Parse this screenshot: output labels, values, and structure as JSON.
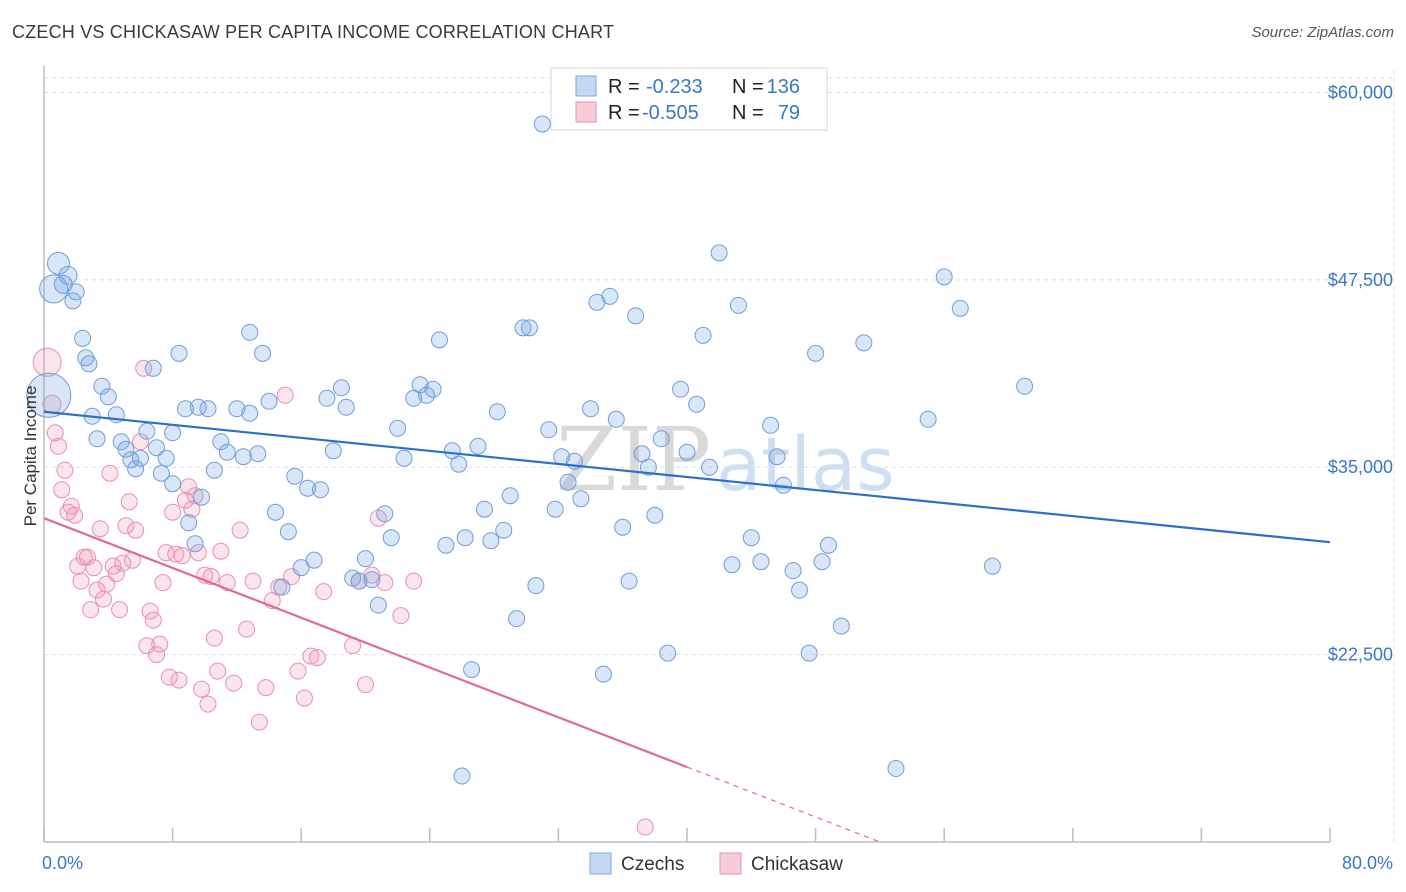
{
  "title": "CZECH VS CHICKASAW PER CAPITA INCOME CORRELATION CHART",
  "source": "Source: ZipAtlas.com",
  "watermark": {
    "zip": "ZIP",
    "atlas": "atlas"
  },
  "colors": {
    "czech_fill": "rgba(120,165,225,0.28)",
    "czech_stroke": "#6f9fd8",
    "czech_line": "#2a6fcc",
    "chick_fill": "rgba(240,150,180,0.25)",
    "chick_stroke": "#e98fb0",
    "chick_line": "#e06a97",
    "accent": "#3a78c4",
    "grid": "#dedede"
  },
  "legend": {
    "rows": [
      {
        "r_label": "R =",
        "r_value": "-0.233",
        "n_label": "N =",
        "n_value": "136"
      },
      {
        "r_label": "R =",
        "r_value": "-0.505",
        "n_label": "N =",
        "n_value": "79"
      }
    ]
  },
  "bottom_legend": [
    "Czechs",
    "Chickasaw"
  ],
  "chart_data": {
    "type": "scatter",
    "xlabel": "",
    "ylabel": "Per Capita Income",
    "xlim": [
      0,
      80
    ],
    "ylim": [
      10000,
      61500
    ],
    "x_tick_labels": [
      "0.0%",
      "80.0%"
    ],
    "y_ticks": [
      22500,
      35000,
      47500,
      60000
    ],
    "y_tick_labels": [
      "$22,500",
      "$35,000",
      "$47,500",
      "$60,000"
    ],
    "grid": true,
    "legend_position": "top-center",
    "series": [
      {
        "name": "Czechs",
        "trend": {
          "x0": 0,
          "y0": 38700,
          "x1": 80,
          "y1": 30000
        },
        "points": [
          [
            0.3,
            39800,
            22
          ],
          [
            0.6,
            46900,
            14
          ],
          [
            0.9,
            48600,
            11
          ],
          [
            1.2,
            47200,
            9
          ],
          [
            1.5,
            47800,
            9
          ],
          [
            1.8,
            46100,
            8
          ],
          [
            2.0,
            46700,
            8
          ],
          [
            2.4,
            43600,
            8
          ],
          [
            2.6,
            42300,
            8
          ],
          [
            2.8,
            41900,
            8
          ],
          [
            3.0,
            38400,
            8
          ],
          [
            3.3,
            36900,
            8
          ],
          [
            3.6,
            40400,
            8
          ],
          [
            4.0,
            39700,
            8
          ],
          [
            4.5,
            38500,
            8
          ],
          [
            4.8,
            36700,
            8
          ],
          [
            5.1,
            36200,
            8
          ],
          [
            5.4,
            35500,
            8
          ],
          [
            5.7,
            34900,
            8
          ],
          [
            6.0,
            35600,
            8
          ],
          [
            6.4,
            37400,
            8
          ],
          [
            6.8,
            41600,
            8
          ],
          [
            7.0,
            36300,
            8
          ],
          [
            7.3,
            34600,
            8
          ],
          [
            7.6,
            35600,
            8
          ],
          [
            8.0,
            33900,
            8
          ],
          [
            8.4,
            42600,
            8
          ],
          [
            8.8,
            38900,
            8
          ],
          [
            9.0,
            31300,
            8
          ],
          [
            9.4,
            29900,
            8
          ],
          [
            9.8,
            33000,
            8
          ],
          [
            10.2,
            38900,
            8
          ],
          [
            10.6,
            34800,
            8
          ],
          [
            11.0,
            36700,
            8
          ],
          [
            11.4,
            36000,
            8
          ],
          [
            12.0,
            38900,
            8
          ],
          [
            12.4,
            35700,
            8
          ],
          [
            12.8,
            44000,
            8
          ],
          [
            13.3,
            35900,
            8
          ],
          [
            13.6,
            42600,
            8
          ],
          [
            14.0,
            39400,
            8
          ],
          [
            14.4,
            32000,
            8
          ],
          [
            14.8,
            27000,
            8
          ],
          [
            15.2,
            30700,
            8
          ],
          [
            15.6,
            34400,
            8
          ],
          [
            16.0,
            28300,
            8
          ],
          [
            16.4,
            33600,
            8
          ],
          [
            16.8,
            28800,
            8
          ],
          [
            17.2,
            33500,
            8
          ],
          [
            17.6,
            39600,
            8
          ],
          [
            18.0,
            36100,
            8
          ],
          [
            18.5,
            40300,
            8
          ],
          [
            18.8,
            39000,
            8
          ],
          [
            19.2,
            27600,
            8
          ],
          [
            19.6,
            27400,
            8
          ],
          [
            20.0,
            28900,
            8
          ],
          [
            20.4,
            27500,
            8
          ],
          [
            20.8,
            25800,
            8
          ],
          [
            21.2,
            31900,
            8
          ],
          [
            21.6,
            30300,
            8
          ],
          [
            22.0,
            37600,
            8
          ],
          [
            22.4,
            35600,
            8
          ],
          [
            23.0,
            39600,
            8
          ],
          [
            23.4,
            40500,
            8
          ],
          [
            23.8,
            39800,
            8
          ],
          [
            24.2,
            40200,
            8
          ],
          [
            24.6,
            43500,
            8
          ],
          [
            25.0,
            29800,
            8
          ],
          [
            25.4,
            36100,
            8
          ],
          [
            25.8,
            35200,
            8
          ],
          [
            26.2,
            30300,
            8
          ],
          [
            26.6,
            21500,
            8
          ],
          [
            27.0,
            36400,
            8
          ],
          [
            27.4,
            32200,
            8
          ],
          [
            27.8,
            30100,
            8
          ],
          [
            28.2,
            38700,
            8
          ],
          [
            28.6,
            30800,
            8
          ],
          [
            29.0,
            33100,
            8
          ],
          [
            29.4,
            24900,
            8
          ],
          [
            29.8,
            44300,
            8
          ],
          [
            30.2,
            44300,
            8
          ],
          [
            30.6,
            27100,
            8
          ],
          [
            31.0,
            57900,
            8
          ],
          [
            31.4,
            37500,
            8
          ],
          [
            31.8,
            32200,
            8
          ],
          [
            32.2,
            35700,
            8
          ],
          [
            32.6,
            34000,
            8
          ],
          [
            33.0,
            35400,
            8
          ],
          [
            33.4,
            32900,
            8
          ],
          [
            34.0,
            38900,
            8
          ],
          [
            34.4,
            46000,
            8
          ],
          [
            34.8,
            21200,
            8
          ],
          [
            35.2,
            46400,
            8
          ],
          [
            35.6,
            38200,
            8
          ],
          [
            36.0,
            31000,
            8
          ],
          [
            36.4,
            27400,
            8
          ],
          [
            36.8,
            45100,
            8
          ],
          [
            37.2,
            35900,
            8
          ],
          [
            37.6,
            35000,
            8
          ],
          [
            38.0,
            31800,
            8
          ],
          [
            38.4,
            36900,
            8
          ],
          [
            38.8,
            22600,
            8
          ],
          [
            39.6,
            40200,
            8
          ],
          [
            40.0,
            36000,
            8
          ],
          [
            40.6,
            39200,
            8
          ],
          [
            41.0,
            43800,
            8
          ],
          [
            41.4,
            35000,
            8
          ],
          [
            42.0,
            49300,
            8
          ],
          [
            42.8,
            28500,
            8
          ],
          [
            43.2,
            45800,
            8
          ],
          [
            44.0,
            30300,
            8
          ],
          [
            44.6,
            28700,
            8
          ],
          [
            45.2,
            37800,
            8
          ],
          [
            45.6,
            35700,
            8
          ],
          [
            46.0,
            33800,
            8
          ],
          [
            46.6,
            28100,
            8
          ],
          [
            47.0,
            26800,
            8
          ],
          [
            47.6,
            22600,
            8
          ],
          [
            48.0,
            42600,
            8
          ],
          [
            48.4,
            28700,
            8
          ],
          [
            48.8,
            29800,
            8
          ],
          [
            49.6,
            24400,
            8
          ],
          [
            51.0,
            43300,
            8
          ],
          [
            53.0,
            14900,
            8
          ],
          [
            55.0,
            38200,
            8
          ],
          [
            56.0,
            47700,
            8
          ],
          [
            57.0,
            45600,
            8
          ],
          [
            59.0,
            28400,
            8
          ],
          [
            61.0,
            40400,
            8
          ],
          [
            26.0,
            14400,
            8
          ],
          [
            12.8,
            38600,
            8
          ],
          [
            8.0,
            37300,
            8
          ],
          [
            9.6,
            39000,
            8
          ]
        ]
      },
      {
        "name": "Chickasaw",
        "trend": {
          "x0": 0,
          "y0": 31600,
          "x1": 40,
          "y1": 15000
        },
        "trend_dashed": {
          "x0": 40,
          "y0": 15000,
          "x1": 52,
          "y1": 10000
        },
        "points": [
          [
            0.2,
            42000,
            14
          ],
          [
            0.5,
            39200,
            9
          ],
          [
            0.7,
            37300,
            8
          ],
          [
            0.9,
            36400,
            8
          ],
          [
            1.1,
            33500,
            8
          ],
          [
            1.3,
            34800,
            8
          ],
          [
            1.5,
            32000,
            8
          ],
          [
            1.7,
            32400,
            8
          ],
          [
            1.9,
            31800,
            8
          ],
          [
            2.1,
            28400,
            8
          ],
          [
            2.3,
            27400,
            8
          ],
          [
            2.5,
            29000,
            8
          ],
          [
            2.7,
            29000,
            8
          ],
          [
            2.9,
            25500,
            8
          ],
          [
            3.1,
            28300,
            8
          ],
          [
            3.3,
            26800,
            8
          ],
          [
            3.5,
            30900,
            8
          ],
          [
            3.7,
            26200,
            8
          ],
          [
            3.9,
            27200,
            8
          ],
          [
            4.1,
            34600,
            8
          ],
          [
            4.3,
            28400,
            8
          ],
          [
            4.5,
            27900,
            8
          ],
          [
            4.7,
            25500,
            8
          ],
          [
            4.9,
            28600,
            8
          ],
          [
            5.1,
            31100,
            8
          ],
          [
            5.3,
            32700,
            8
          ],
          [
            5.5,
            28800,
            8
          ],
          [
            5.7,
            30800,
            8
          ],
          [
            6.0,
            36700,
            8
          ],
          [
            6.2,
            41600,
            8
          ],
          [
            6.4,
            23100,
            8
          ],
          [
            6.6,
            25400,
            8
          ],
          [
            6.8,
            24800,
            8
          ],
          [
            7.0,
            22500,
            8
          ],
          [
            7.2,
            23200,
            8
          ],
          [
            7.4,
            27300,
            8
          ],
          [
            7.6,
            29300,
            8
          ],
          [
            7.8,
            21000,
            8
          ],
          [
            8.0,
            32000,
            8
          ],
          [
            8.2,
            29200,
            8
          ],
          [
            8.4,
            20800,
            8
          ],
          [
            8.6,
            29100,
            8
          ],
          [
            8.8,
            32800,
            8
          ],
          [
            9.0,
            33700,
            8
          ],
          [
            9.2,
            32200,
            8
          ],
          [
            9.4,
            33100,
            8
          ],
          [
            9.6,
            29300,
            8
          ],
          [
            9.8,
            20200,
            8
          ],
          [
            10.0,
            27800,
            8
          ],
          [
            10.2,
            19200,
            8
          ],
          [
            10.4,
            27700,
            8
          ],
          [
            10.6,
            23600,
            8
          ],
          [
            10.8,
            21400,
            8
          ],
          [
            11.0,
            29400,
            8
          ],
          [
            11.4,
            27300,
            8
          ],
          [
            11.8,
            20600,
            8
          ],
          [
            12.2,
            30800,
            8
          ],
          [
            12.6,
            24200,
            8
          ],
          [
            13.0,
            27400,
            8
          ],
          [
            13.4,
            18000,
            8
          ],
          [
            13.8,
            20300,
            8
          ],
          [
            14.2,
            26100,
            8
          ],
          [
            14.6,
            27000,
            8
          ],
          [
            15.0,
            39800,
            8
          ],
          [
            15.4,
            27700,
            8
          ],
          [
            15.8,
            21400,
            8
          ],
          [
            16.2,
            19600,
            8
          ],
          [
            16.6,
            22400,
            8
          ],
          [
            17.0,
            22300,
            8
          ],
          [
            17.4,
            26700,
            8
          ],
          [
            19.2,
            23100,
            8
          ],
          [
            19.6,
            27400,
            8
          ],
          [
            20.0,
            20500,
            8
          ],
          [
            20.4,
            27800,
            8
          ],
          [
            20.8,
            31600,
            8
          ],
          [
            21.2,
            27300,
            8
          ],
          [
            22.2,
            25100,
            8
          ],
          [
            23.0,
            27400,
            8
          ],
          [
            37.4,
            11000,
            8
          ]
        ]
      }
    ]
  }
}
